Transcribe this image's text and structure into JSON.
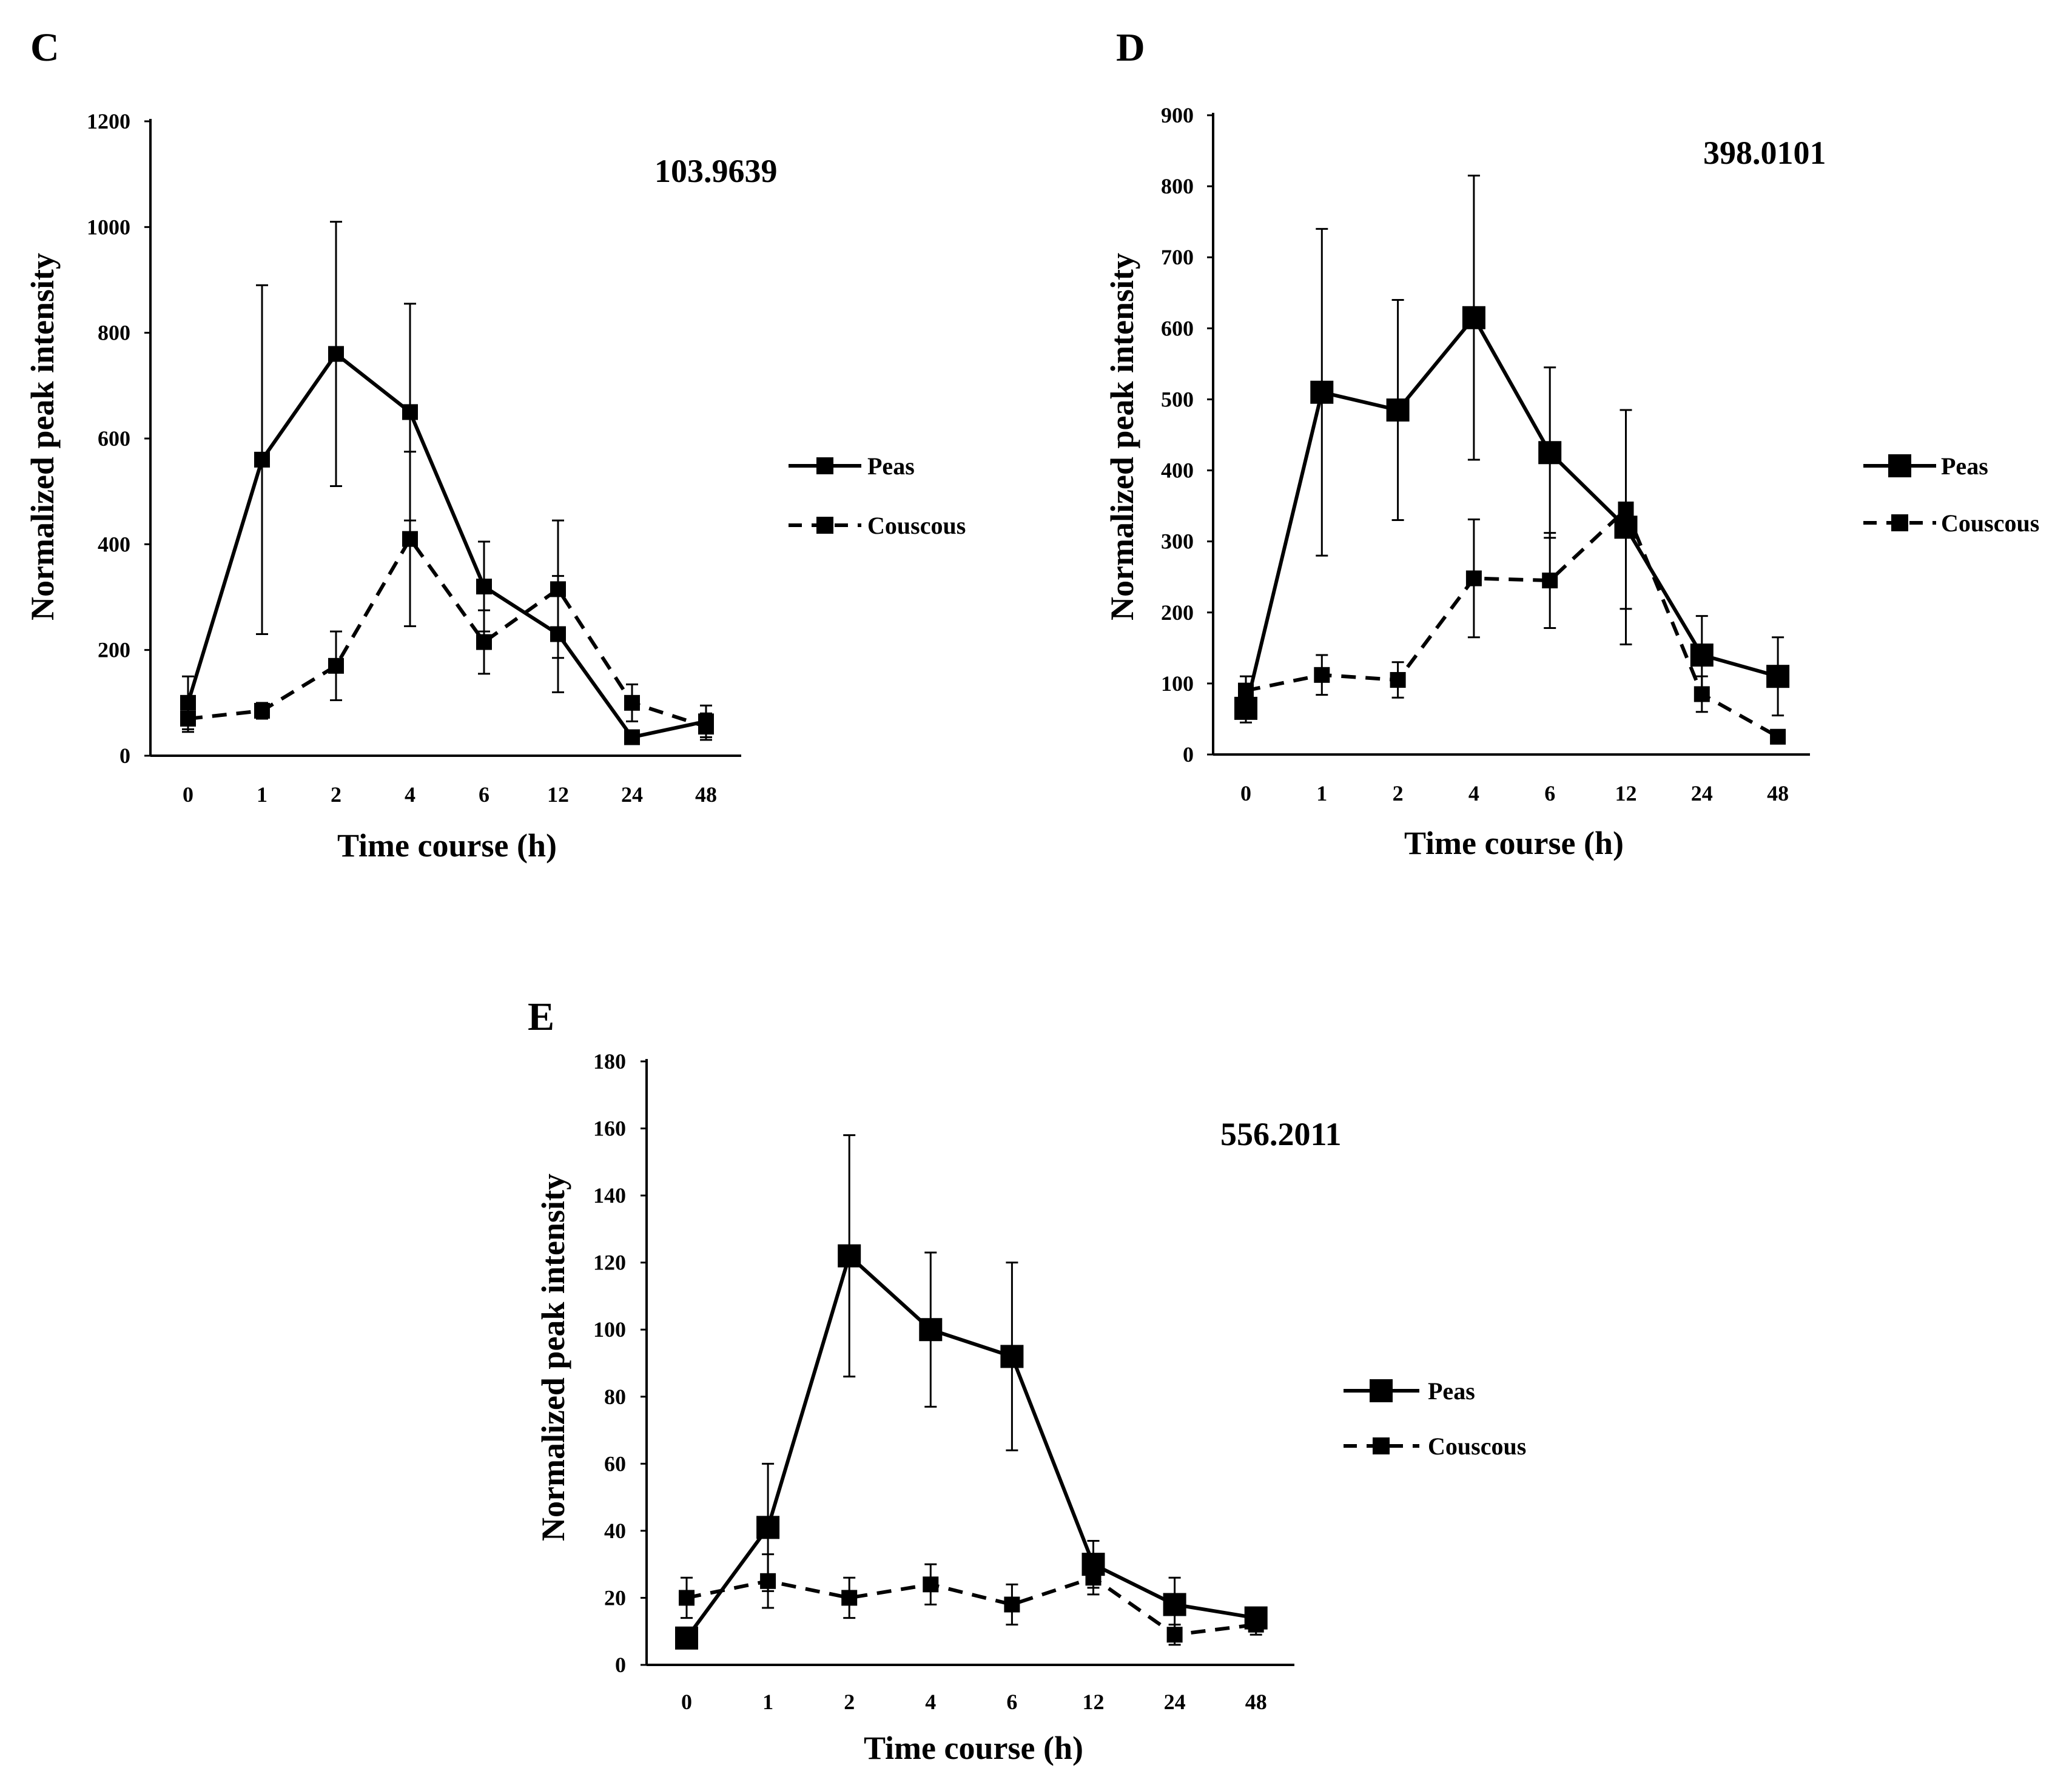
{
  "figure": {
    "background": "#ffffff",
    "line_color": "#000000"
  },
  "chart_data": [
    {
      "panel": "C",
      "type": "line",
      "annotation": "103.9639",
      "xlabel": "Time course (h)",
      "ylabel": "Normalized peak intensity",
      "categories": [
        "0",
        "1",
        "2",
        "4",
        "6",
        "12",
        "24",
        "48"
      ],
      "ylim": [
        0,
        1200
      ],
      "yticks": [
        0,
        200,
        400,
        600,
        800,
        1000,
        1200
      ],
      "legend_position": "right",
      "series": [
        {
          "name": "Peas",
          "style": "solid",
          "values": [
            100,
            560,
            760,
            650,
            320,
            230,
            35,
            65
          ],
          "errors": [
            50,
            330,
            250,
            205,
            85,
            110,
            10,
            30
          ]
        },
        {
          "name": "Couscous",
          "style": "dashed",
          "values": [
            70,
            85,
            170,
            410,
            215,
            315,
            100,
            55
          ],
          "errors": [
            25,
            15,
            65,
            165,
            60,
            130,
            35,
            25
          ]
        }
      ]
    },
    {
      "panel": "D",
      "type": "line",
      "annotation": "398.0101",
      "xlabel": "Time course (h)",
      "ylabel": "Normalized peak intensity",
      "categories": [
        "0",
        "1",
        "2",
        "4",
        "6",
        "12",
        "24",
        "48"
      ],
      "ylim": [
        0,
        900
      ],
      "yticks": [
        0,
        100,
        200,
        300,
        400,
        500,
        600,
        700,
        800,
        900
      ],
      "legend_position": "right",
      "series": [
        {
          "name": "Peas",
          "style": "solid",
          "values": [
            65,
            510,
            485,
            615,
            425,
            320,
            140,
            110
          ],
          "errors": [
            20,
            230,
            155,
            200,
            120,
            165,
            55,
            55
          ]
        },
        {
          "name": "Couscous",
          "style": "dashed",
          "values": [
            90,
            112,
            105,
            248,
            245,
            345,
            85,
            25
          ],
          "errors": [
            20,
            28,
            25,
            83,
            67,
            140,
            25,
            8
          ]
        }
      ]
    },
    {
      "panel": "E",
      "type": "line",
      "annotation": "556.2011",
      "xlabel": "Time course (h)",
      "ylabel": "Normalized peak intensity",
      "categories": [
        "0",
        "1",
        "2",
        "4",
        "6",
        "12",
        "24",
        "48"
      ],
      "ylim": [
        0,
        180
      ],
      "yticks": [
        0,
        20,
        40,
        60,
        80,
        100,
        120,
        140,
        160,
        180
      ],
      "legend_position": "right",
      "series": [
        {
          "name": "Peas",
          "style": "solid",
          "values": [
            8,
            41,
            122,
            100,
            92,
            30,
            18,
            14
          ],
          "errors": [
            2,
            19,
            36,
            23,
            28,
            7,
            8,
            3
          ]
        },
        {
          "name": "Couscous",
          "style": "dashed",
          "values": [
            20,
            25,
            20,
            24,
            18,
            26,
            9,
            12
          ],
          "errors": [
            6,
            8,
            6,
            6,
            6,
            5,
            3,
            3
          ]
        }
      ]
    }
  ]
}
